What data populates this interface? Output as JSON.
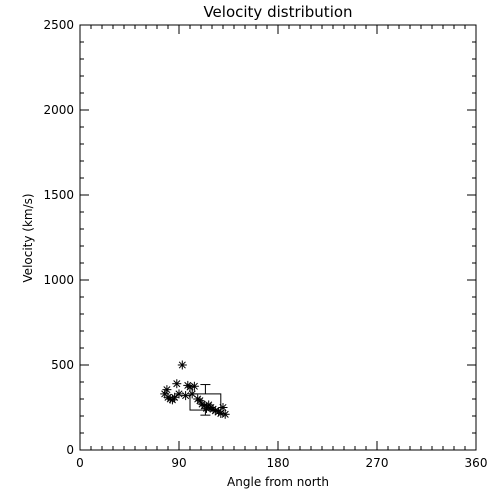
{
  "chart_data": {
    "type": "scatter",
    "title": "Velocity distribution",
    "xlabel": "Angle from north",
    "ylabel": "Velocity (km/s)",
    "xlim": [
      0,
      360
    ],
    "ylim": [
      0,
      2500
    ],
    "xticks": [
      0,
      90,
      180,
      270,
      360
    ],
    "xtick_labels": [
      "0",
      "90",
      "180",
      "270",
      "360"
    ],
    "yticks": [
      0,
      500,
      1000,
      1500,
      2000,
      2500
    ],
    "ytick_labels": [
      "0",
      "500",
      "1000",
      "1500",
      "2000",
      "2500"
    ],
    "x_minor_step": 10,
    "y_minor_step": 100,
    "grid": false,
    "marker": "asterisk",
    "points": [
      {
        "x": 77,
        "y": 330
      },
      {
        "x": 79,
        "y": 355
      },
      {
        "x": 80,
        "y": 310
      },
      {
        "x": 82,
        "y": 300
      },
      {
        "x": 84,
        "y": 295
      },
      {
        "x": 86,
        "y": 310
      },
      {
        "x": 88,
        "y": 390
      },
      {
        "x": 90,
        "y": 330
      },
      {
        "x": 93,
        "y": 500
      },
      {
        "x": 96,
        "y": 320
      },
      {
        "x": 98,
        "y": 380
      },
      {
        "x": 100,
        "y": 370
      },
      {
        "x": 102,
        "y": 330
      },
      {
        "x": 104,
        "y": 375
      },
      {
        "x": 107,
        "y": 300
      },
      {
        "x": 109,
        "y": 290
      },
      {
        "x": 111,
        "y": 270
      },
      {
        "x": 113,
        "y": 260
      },
      {
        "x": 115,
        "y": 245
      },
      {
        "x": 117,
        "y": 265
      },
      {
        "x": 119,
        "y": 250
      },
      {
        "x": 121,
        "y": 240
      },
      {
        "x": 123,
        "y": 230
      },
      {
        "x": 126,
        "y": 225
      },
      {
        "x": 128,
        "y": 215
      },
      {
        "x": 130,
        "y": 250
      },
      {
        "x": 132,
        "y": 210
      }
    ],
    "box": {
      "x_min": 100,
      "x_max": 128,
      "q1": 235,
      "q3": 330,
      "whisker_x": 114,
      "whisker_low": 205,
      "whisker_high": 385
    }
  }
}
